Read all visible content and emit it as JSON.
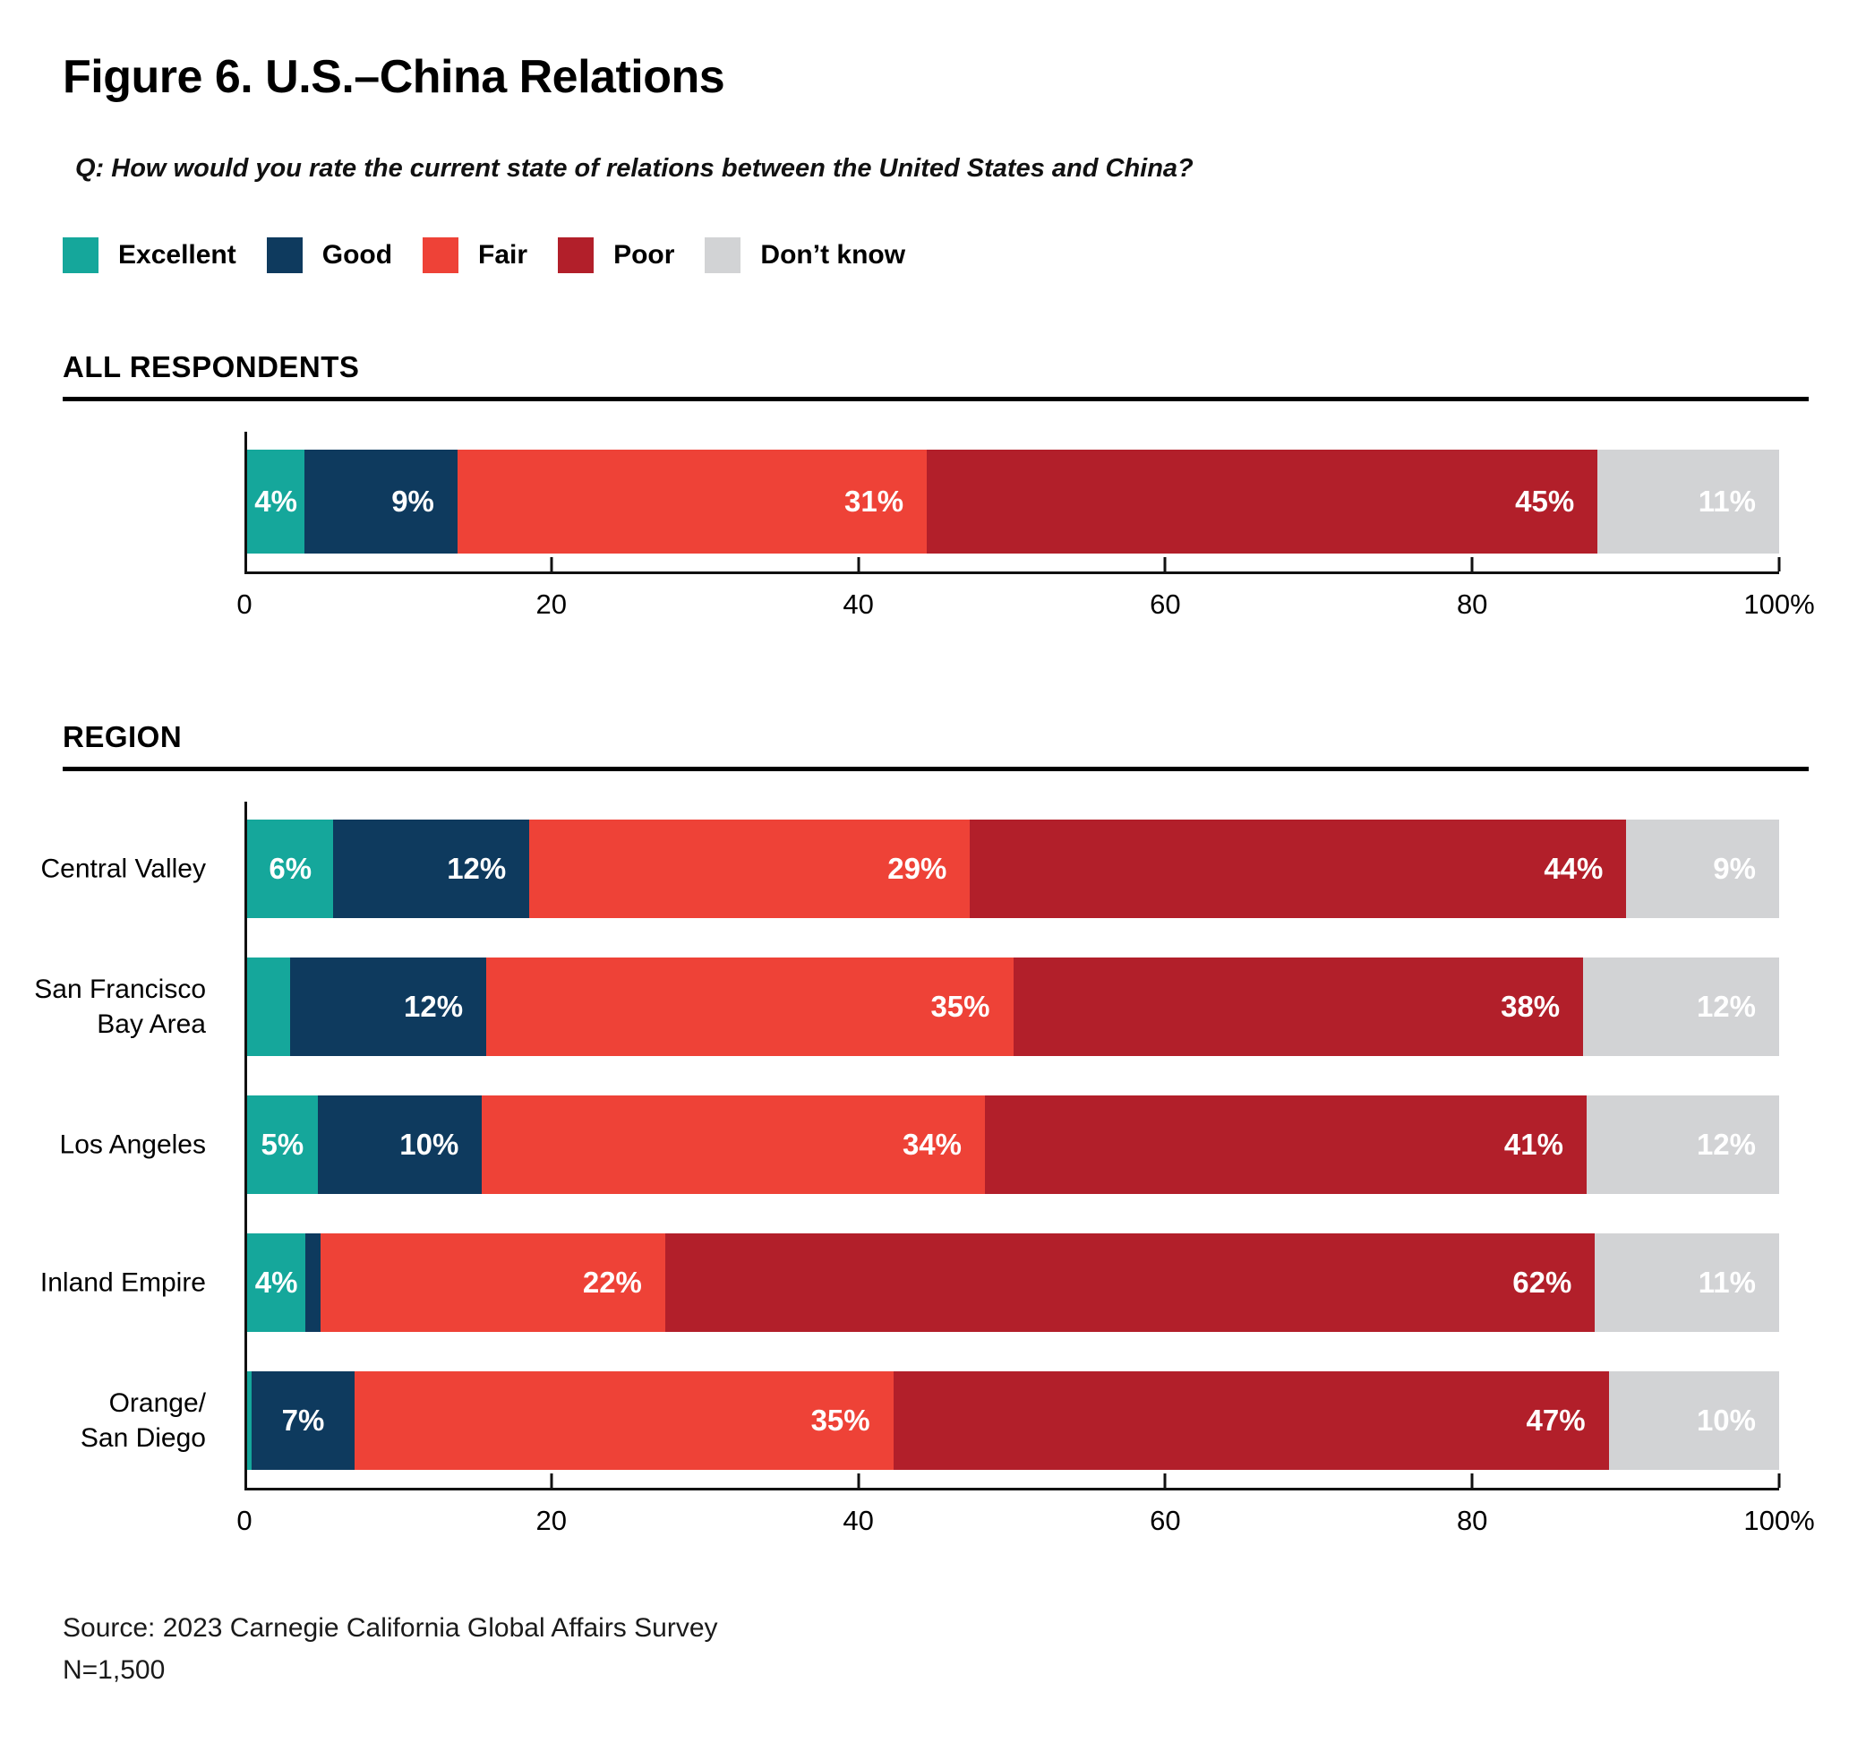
{
  "title": "Figure 6. U.S.–China Relations",
  "question": "Q: How would you rate the current state of relations between the United States and China?",
  "palette": {
    "excellent": "#15A79B",
    "good": "#0E3A5E",
    "fair": "#EE4237",
    "poor": "#B21F2A",
    "dont_know": "#D2D3D5"
  },
  "legend": {
    "items": [
      {
        "key": "excellent",
        "label": "Excellent"
      },
      {
        "key": "good",
        "label": "Good"
      },
      {
        "key": "fair",
        "label": "Fair"
      },
      {
        "key": "poor",
        "label": "Poor"
      },
      {
        "key": "dont_know",
        "label": "Don’t know"
      }
    ]
  },
  "axis": {
    "ticks": [
      {
        "pos": 0,
        "label": "0",
        "mark": false
      },
      {
        "pos": 20,
        "label": "20",
        "mark": true
      },
      {
        "pos": 40,
        "label": "40",
        "mark": true
      },
      {
        "pos": 60,
        "label": "60",
        "mark": true
      },
      {
        "pos": 80,
        "label": "80",
        "mark": true
      },
      {
        "pos": 100,
        "label": "100%",
        "mark": true
      }
    ]
  },
  "sections": [
    {
      "heading": "ALL RESPONDENTS",
      "rows": [
        {
          "label": "",
          "segments": [
            {
              "key": "excellent",
              "value": 4,
              "label": "4%"
            },
            {
              "key": "good",
              "value": 9,
              "label": "9%"
            },
            {
              "key": "fair",
              "value": 31,
              "label": "31%"
            },
            {
              "key": "poor",
              "value": 45,
              "label": "45%"
            },
            {
              "key": "dont_know",
              "value": 11,
              "label": "11%"
            }
          ]
        }
      ]
    },
    {
      "heading": "REGION",
      "rows": [
        {
          "label": "Central Valley",
          "segments": [
            {
              "key": "excellent",
              "value": 6,
              "label": "6%"
            },
            {
              "key": "good",
              "value": 12,
              "label": "12%"
            },
            {
              "key": "fair",
              "value": 29,
              "label": "29%"
            },
            {
              "key": "poor",
              "value": 44,
              "label": "44%"
            },
            {
              "key": "dont_know",
              "value": 9,
              "label": "9%"
            }
          ]
        },
        {
          "label": "San Francisco\nBay Area",
          "segments": [
            {
              "key": "excellent",
              "value": 3,
              "label": ""
            },
            {
              "key": "good",
              "value": 12,
              "label": "12%"
            },
            {
              "key": "fair",
              "value": 35,
              "label": "35%"
            },
            {
              "key": "poor",
              "value": 38,
              "label": "38%"
            },
            {
              "key": "dont_know",
              "value": 12,
              "label": "12%"
            }
          ]
        },
        {
          "label": "Los Angeles",
          "segments": [
            {
              "key": "excellent",
              "value": 5,
              "label": "5%"
            },
            {
              "key": "good",
              "value": 10,
              "label": "10%"
            },
            {
              "key": "fair",
              "value": 34,
              "label": "34%"
            },
            {
              "key": "poor",
              "value": 41,
              "label": "41%"
            },
            {
              "key": "dont_know",
              "value": 12,
              "label": "12%"
            }
          ]
        },
        {
          "label": "Inland Empire",
          "segments": [
            {
              "key": "excellent",
              "value": 4,
              "label": "4%"
            },
            {
              "key": "good",
              "value": 1,
              "label": ""
            },
            {
              "key": "fair",
              "value": 22,
              "label": "22%"
            },
            {
              "key": "poor",
              "value": 62,
              "label": "62%"
            },
            {
              "key": "dont_know",
              "value": 11,
              "label": "11%"
            }
          ]
        },
        {
          "label": "Orange/\nSan Diego",
          "segments": [
            {
              "key": "excellent",
              "value": 0.3,
              "label": ""
            },
            {
              "key": "good",
              "value": 7,
              "label": "7%"
            },
            {
              "key": "fair",
              "value": 35,
              "label": "35%"
            },
            {
              "key": "poor",
              "value": 47,
              "label": "47%"
            },
            {
              "key": "dont_know",
              "value": 10,
              "label": "10%"
            }
          ]
        }
      ]
    }
  ],
  "source_line1": "Source: 2023 Carnegie California Global Affairs Survey",
  "source_line2": "N=1,500",
  "chart_data": {
    "type": "bar",
    "orientation": "horizontal_stacked",
    "title": "Figure 6. U.S.–China Relations",
    "subtitle": "Q: How would you rate the current state of relations between the United States and China?",
    "legend": [
      "Excellent",
      "Good",
      "Fair",
      "Poor",
      "Don’t know"
    ],
    "legend_position": "top",
    "x_axis": {
      "range": [
        0,
        100
      ],
      "ticks": [
        0,
        20,
        40,
        60,
        80,
        100
      ],
      "unit": "%",
      "grid": false
    },
    "groups": [
      {
        "group": "ALL RESPONDENTS",
        "rows": [
          {
            "category": "All respondents",
            "values": {
              "excellent": 4,
              "good": 9,
              "fair": 31,
              "poor": 45,
              "dont_know": 11
            }
          }
        ]
      },
      {
        "group": "REGION",
        "rows": [
          {
            "category": "Central Valley",
            "values": {
              "excellent": 6,
              "good": 12,
              "fair": 29,
              "poor": 44,
              "dont_know": 9
            }
          },
          {
            "category": "San Francisco Bay Area",
            "values": {
              "excellent": 3,
              "good": 12,
              "fair": 35,
              "poor": 38,
              "dont_know": 12
            }
          },
          {
            "category": "Los Angeles",
            "values": {
              "excellent": 5,
              "good": 10,
              "fair": 34,
              "poor": 41,
              "dont_know": 12
            }
          },
          {
            "category": "Inland Empire",
            "values": {
              "excellent": 4,
              "good": 1,
              "fair": 22,
              "poor": 62,
              "dont_know": 11
            }
          },
          {
            "category": "Orange/San Diego",
            "values": {
              "excellent": 0.3,
              "good": 7,
              "fair": 35,
              "poor": 47,
              "dont_know": 10
            }
          }
        ]
      }
    ],
    "source": "Source: 2023 Carnegie California Global Affairs Survey",
    "sample_size": "N=1,500"
  }
}
